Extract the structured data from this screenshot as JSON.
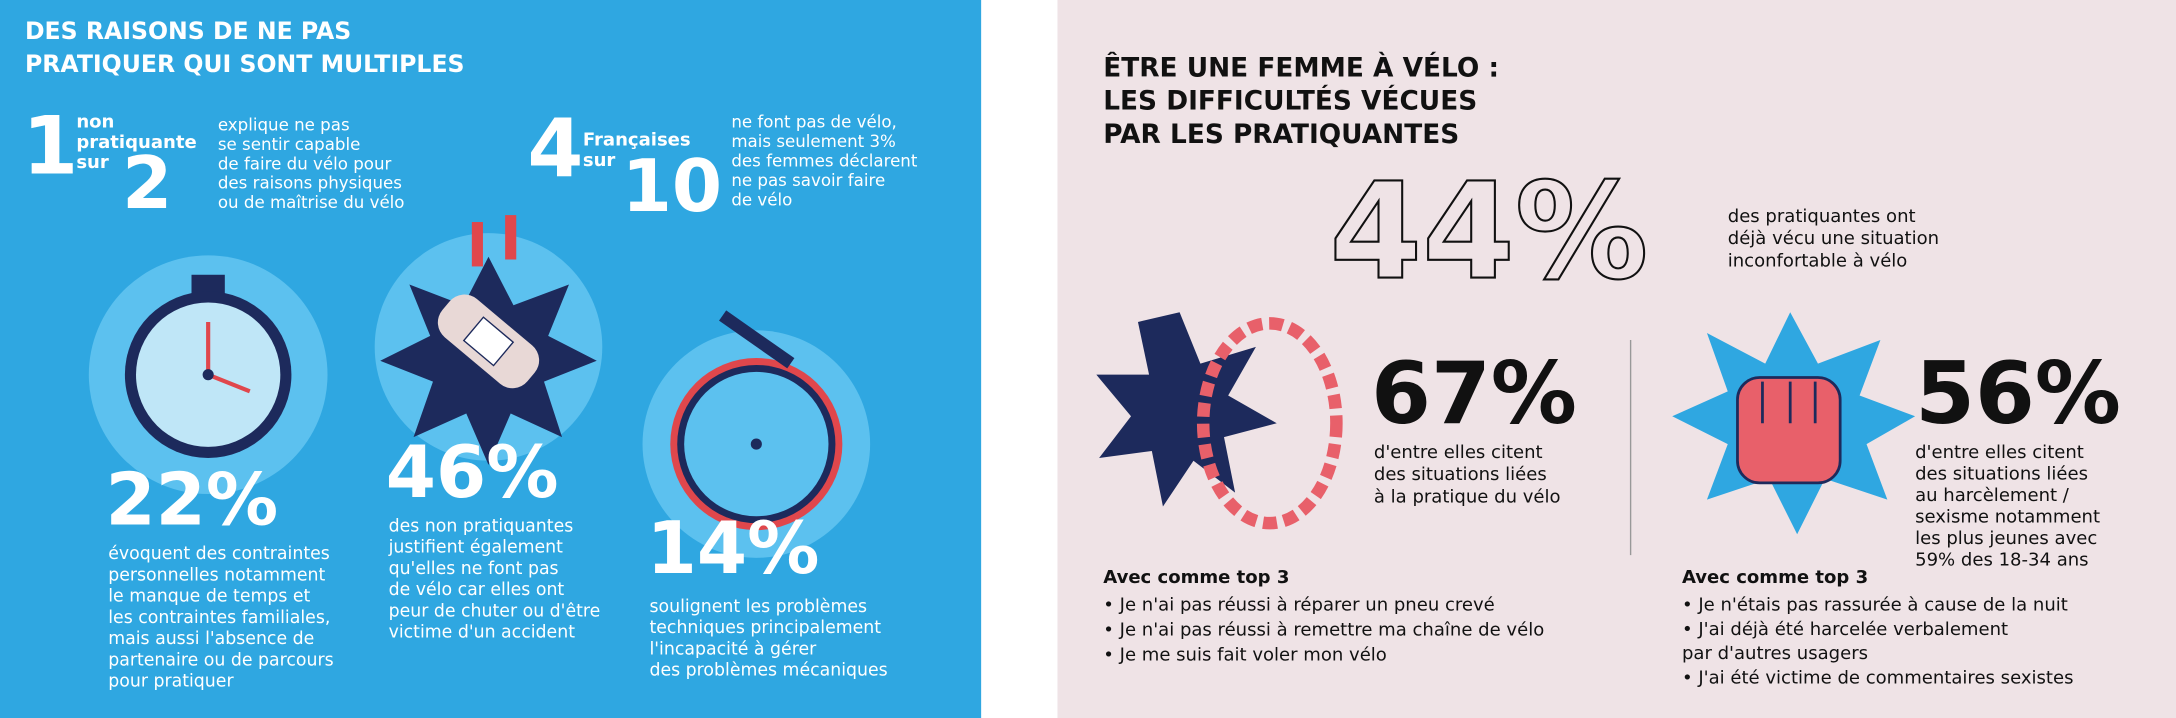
{
  "left": {
    "title": [
      "DES RAISONS DE NE PAS",
      "PRATIQUER QUI SONT MULTIPLES"
    ],
    "stat1": {
      "num": "1",
      "words": [
        "non",
        "pratiquante",
        "sur"
      ],
      "den": "2",
      "text": [
        "explique ne pas",
        "se sentir capable",
        "de faire du vélo pour",
        "des raisons physiques",
        "ou de maîtrise du vélo"
      ]
    },
    "stat2": {
      "num": "4",
      "words": [
        "Françaises",
        "sur"
      ],
      "den": "10",
      "text": [
        "ne font pas de vélo,",
        "mais seulement 3%",
        "des femmes déclarent",
        "ne pas savoir faire",
        "de vélo"
      ]
    },
    "stat3": {
      "value": "22%",
      "text": [
        "évoquent des contraintes",
        "personnelles notamment",
        "le manque de temps et",
        "les contraintes familiales,",
        "mais aussi l'absence de",
        "partenaire ou de parcours",
        "pour pratiquer"
      ]
    },
    "stat4": {
      "value": "46%",
      "text": [
        "des non pratiquantes",
        "justifient également",
        "qu'elles ne font pas",
        "de vélo car elles ont",
        "peur de chuter ou d'être",
        "victime d'un accident"
      ]
    },
    "stat5": {
      "value": "14%",
      "text": [
        "soulignent les problèmes",
        "techniques principalement",
        "l'incapacité à gérer",
        "des problèmes mécaniques"
      ]
    }
  },
  "right": {
    "title": [
      "ÊTRE UNE FEMME À VÉLO :",
      "LES DIFFICULTÉS VÉCUES",
      "PAR LES PRATIQUANTES"
    ],
    "stat1": {
      "value": "44%",
      "text": [
        "des pratiquantes ont",
        "déjà vécu une situation",
        "inconfortable à vélo"
      ]
    },
    "stat2": {
      "value": "67%",
      "text": [
        "d'entre elles citent",
        "des situations liées",
        "à la pratique du vélo"
      ],
      "top_title": "Avec comme top 3",
      "top": [
        "• Je n'ai pas réussi à réparer un pneu crevé",
        "• Je n'ai pas réussi à remettre ma chaîne de vélo",
        "• Je me suis fait voler mon vélo"
      ]
    },
    "stat3": {
      "value": "56%",
      "text": [
        "d'entre elles citent",
        "des situations liées",
        "au harcèlement /",
        "sexisme notamment",
        "les plus jeunes avec",
        "59% des 18-34 ans"
      ],
      "top_title": "Avec comme top 3",
      "top": [
        "• Je n'étais pas rassurée à cause de la nuit",
        "• J'ai déjà été harcelée verbalement",
        "  par d'autres usagers",
        "• J'ai été victime de commentaires sexistes"
      ]
    }
  }
}
